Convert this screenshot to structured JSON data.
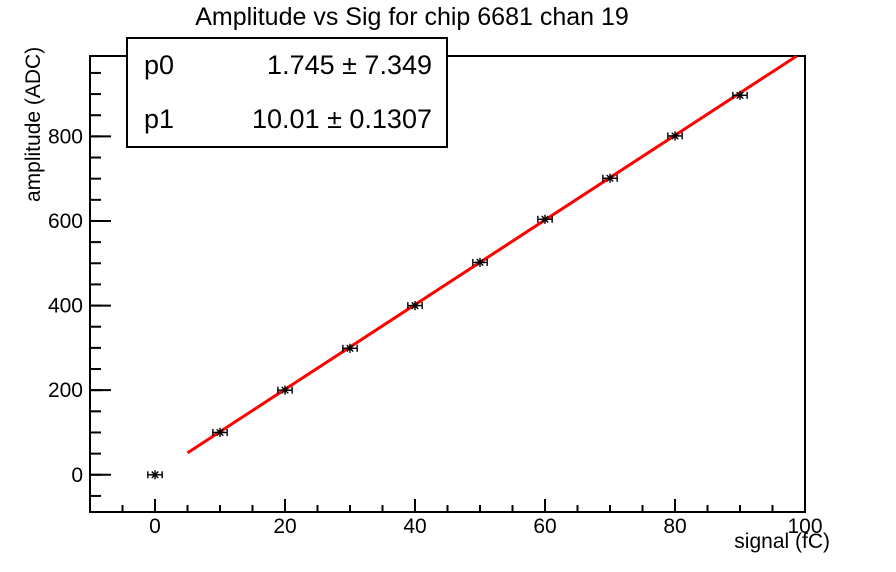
{
  "chart_data": {
    "type": "scatter",
    "title": "Amplitude vs Sig for chip 6681 chan 19",
    "xlabel": "signal (fC)",
    "ylabel": "amplitude (ADC)",
    "xlim": [
      -10,
      100
    ],
    "ylim": [
      -88,
      990
    ],
    "x_major_ticks": [
      0,
      20,
      40,
      60,
      80,
      100
    ],
    "x_minor_step": 5,
    "y_major_ticks": [
      0,
      200,
      400,
      600,
      800
    ],
    "y_minor_step": 50,
    "grid": false,
    "legend": "none",
    "points": [
      {
        "x": 0,
        "y": 0
      },
      {
        "x": 10,
        "y": 100
      },
      {
        "x": 20,
        "y": 200
      },
      {
        "x": 30,
        "y": 299
      },
      {
        "x": 40,
        "y": 400
      },
      {
        "x": 50,
        "y": 502
      },
      {
        "x": 60,
        "y": 604
      },
      {
        "x": 70,
        "y": 701
      },
      {
        "x": 80,
        "y": 801
      },
      {
        "x": 90,
        "y": 897
      }
    ],
    "x_err": 1.1,
    "marker": "asterisk",
    "marker_color": "#000000",
    "fit_line": {
      "p0": 1.745,
      "p1": 10.01,
      "x_start": 5,
      "x_end": 98.7,
      "color": "#ff0000",
      "width": 3
    }
  },
  "stats_box": {
    "rows": [
      {
        "name": "p0",
        "value": "1.745 ± 7.349"
      },
      {
        "name": "p1",
        "value": "10.01 ± 0.1307"
      }
    ]
  },
  "colors": {
    "axis": "#000000",
    "background": "#ffffff",
    "fit_line": "#ff0000",
    "marker": "#000000"
  }
}
